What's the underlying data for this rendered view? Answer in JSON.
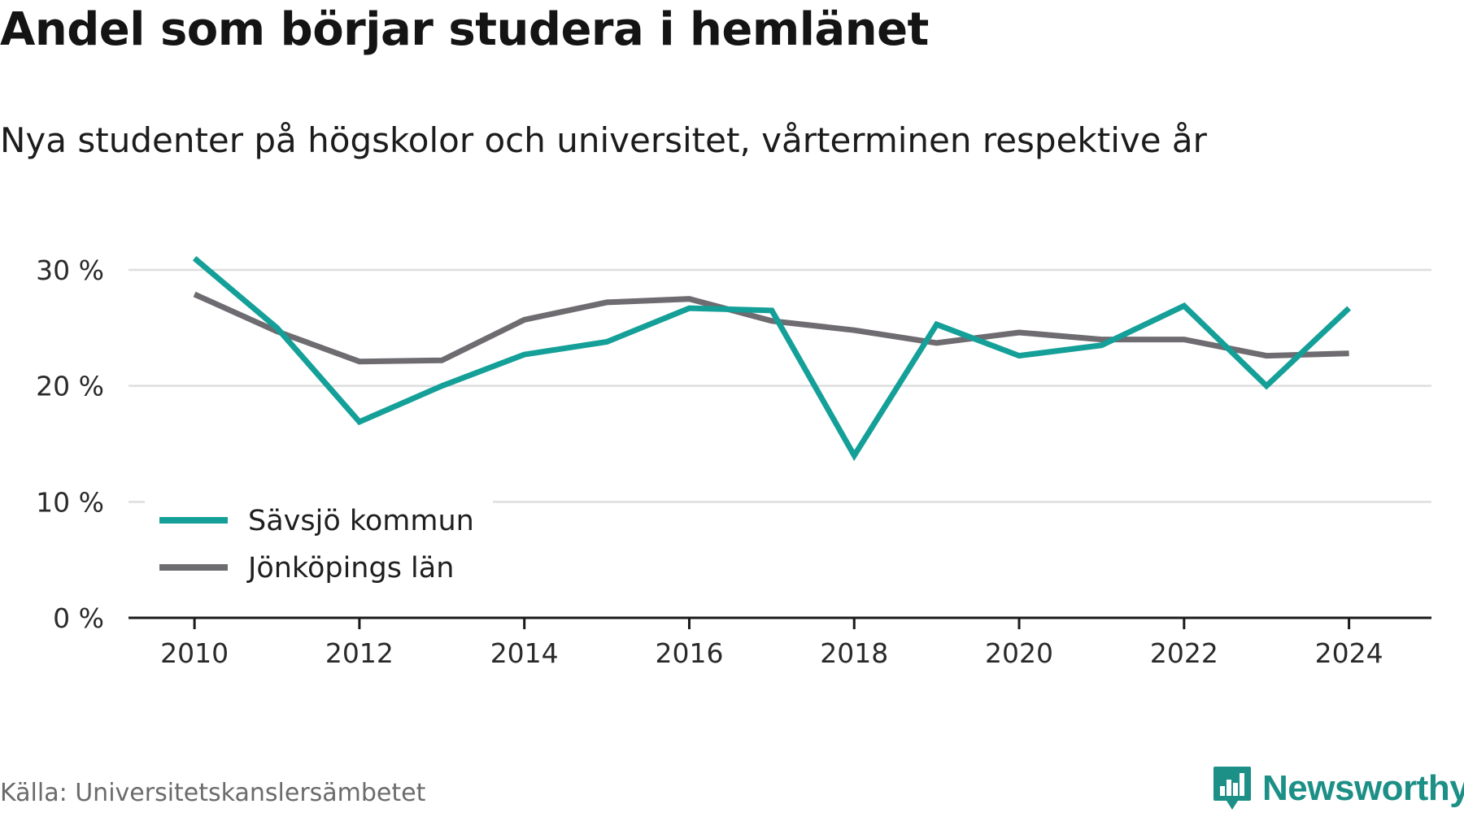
{
  "chart_data": {
    "type": "line",
    "title": "Andel som börjar studera i hemlänet",
    "subtitle": "Nya studenter på högskolor och universitet, vårterminen respektive år",
    "x": [
      2010,
      2011,
      2012,
      2013,
      2014,
      2015,
      2016,
      2017,
      2018,
      2019,
      2020,
      2021,
      2022,
      2023,
      2024
    ],
    "series": [
      {
        "name": "Sävsjö kommun",
        "color": "#14a098",
        "values": [
          31.0,
          25.0,
          16.9,
          20.0,
          22.7,
          23.8,
          26.7,
          26.5,
          14.0,
          25.3,
          22.6,
          23.5,
          26.9,
          20.0,
          26.7
        ]
      },
      {
        "name": "Jönköpings län",
        "color": "#6e6c70",
        "values": [
          27.9,
          24.7,
          22.1,
          22.2,
          25.7,
          27.2,
          27.5,
          25.6,
          24.8,
          23.7,
          24.6,
          24.0,
          24.0,
          22.6,
          22.8
        ]
      }
    ],
    "ylim": [
      0,
      30
    ],
    "yticks": [
      0,
      10,
      20,
      30
    ],
    "ytick_labels": [
      "0 %",
      "10 %",
      "20 %",
      "30 %"
    ],
    "xticks": [
      2010,
      2012,
      2014,
      2016,
      2018,
      2020,
      2022,
      2024
    ],
    "xtick_labels": [
      "2010",
      "2012",
      "2014",
      "2016",
      "2018",
      "2020",
      "2022",
      "2024"
    ],
    "xlabel": "",
    "ylabel": "",
    "grid": true,
    "legend_position": "bottom-left",
    "gridline_color": "#dedede",
    "axis_color": "#1a1a1a"
  },
  "source": "Källa: Universitetskanslersämbetet",
  "brand": {
    "name": "Newsworthy",
    "icon": "newsworthy-logo-icon",
    "color": "#1c8f86"
  }
}
